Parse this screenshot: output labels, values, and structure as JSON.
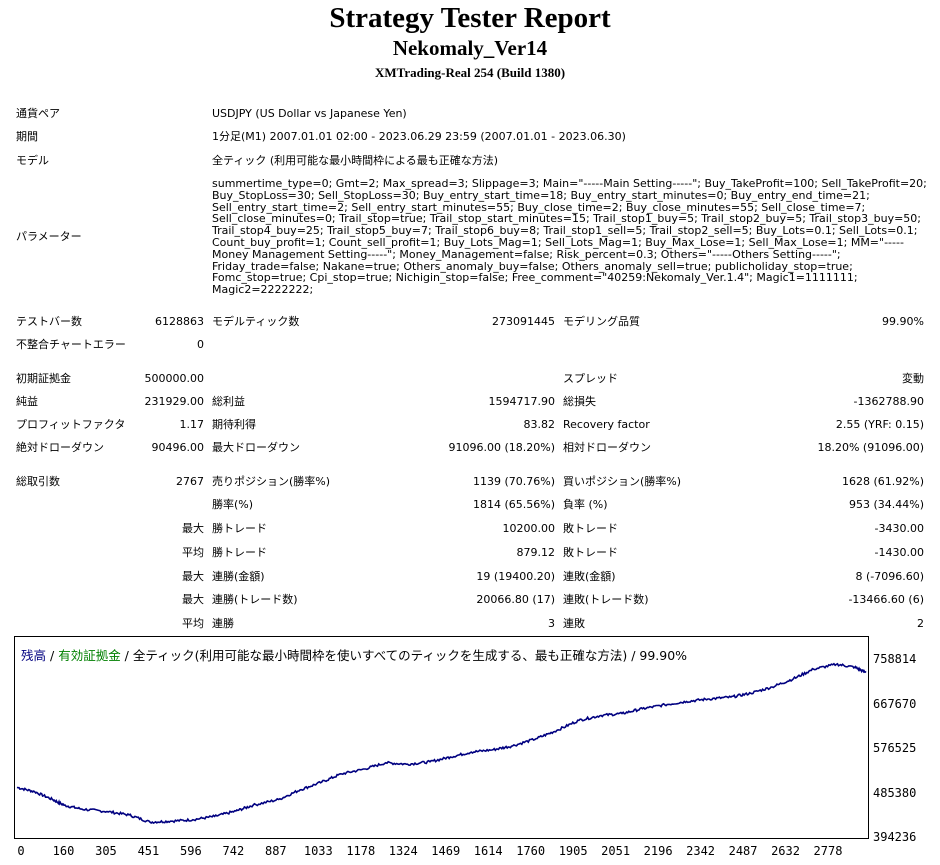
{
  "report": {
    "title": "Strategy Tester Report",
    "subtitle": "Nekomaly_Ver14",
    "build": "XMTrading-Real 254 (Build 1380)"
  },
  "info": {
    "pair_label": "通貨ペア",
    "pair_value": "USDJPY (US Dollar vs Japanese Yen)",
    "period_label": "期間",
    "period_value": "1分足(M1) 2007.01.01 02:00 - 2023.06.29 23:59 (2007.01.01 - 2023.06.30)",
    "model_label": "モデル",
    "model_value": "全ティック (利用可能な最小時間枠による最も正確な方法)",
    "params_label": "パラメーター",
    "params_value": "summertime_type=0; Gmt=2; Max_spread=3; Slippage=3; Main=\"-----Main Setting-----\"; Buy_TakeProfit=100; Sell_TakeProfit=20; Buy_StopLoss=30; Sell_StopLoss=30; Buy_entry_start_time=18; Buy_entry_start_minutes=0; Buy_entry_end_time=21; Sell_entry_start_time=2; Sell_entry_start_minutes=55; Buy_close_time=2; Buy_close_minutes=55; Sell_close_time=7; Sell_close_minutes=0; Trail_stop=true; Trail_stop_start_minutes=15; Trail_stop1_buy=5; Trail_stop2_buy=5; Trail_stop3_buy=50; Trail_stop4_buy=25; Trail_stop5_buy=7; Trail_stop6_buy=8; Trail_stop1_sell=5; Trail_stop2_sell=5; Buy_Lots=0.1; Sell_Lots=0.1; Count_buy_profit=1; Count_sell_profit=1; Buy_Lots_Mag=1; Sell_Lots_Mag=1; Buy_Max_Lose=1; Sell_Max_Lose=1; MM=\"-----Money Management Setting-----\"; Money_Management=false; Risk_percent=0.3; Others=\"-----Others Setting-----\"; Friday_trade=false; Nakane=true; Others_anomaly_buy=false; Others_anomaly_sell=true; publicholiday_stop=true; Fomc_stop=true; Cpi_stop=true; Nichigin_stop=false; Free_comment=\"40259:Nekomaly_Ver.1.4\"; Magic1=1111111; Magic2=2222222;"
  },
  "stats": {
    "bars_label": "テストバー数",
    "bars_value": "6128863",
    "ticks_label": "モデルティック数",
    "ticks_value": "273091445",
    "quality_label": "モデリング品質",
    "quality_value": "99.90%",
    "mismatch_label": "不整合チャートエラー",
    "mismatch_value": "0",
    "deposit_label": "初期証拠金",
    "deposit_value": "500000.00",
    "spread_label": "スプレッド",
    "spread_value": "変動",
    "net_label": "純益",
    "net_value": "231929.00",
    "gross_profit_label": "総利益",
    "gross_profit_value": "1594717.90",
    "gross_loss_label": "総損失",
    "gross_loss_value": "-1362788.90",
    "pf_label": "プロフィットファクタ",
    "pf_value": "1.17",
    "expected_label": "期待利得",
    "expected_value": "83.82",
    "recovery_label": "Recovery factor",
    "recovery_value": "2.55 (YRF: 0.15)",
    "abs_dd_label": "絶対ドローダウン",
    "abs_dd_value": "90496.00",
    "max_dd_label": "最大ドローダウン",
    "max_dd_value": "91096.00 (18.20%)",
    "rel_dd_label": "相対ドローダウン",
    "rel_dd_value": "18.20% (91096.00)",
    "trades_label": "総取引数",
    "trades_value": "2767",
    "short_label": "売りポジション(勝率%)",
    "short_value": "1139 (70.76%)",
    "long_label": "買いポジション(勝率%)",
    "long_value": "1628 (61.92%)",
    "winrate_label": "勝率(%)",
    "winrate_value": "1814 (65.56%)",
    "lossrate_label": "負率 (%)",
    "lossrate_value": "953 (34.44%)",
    "max_label": "最大",
    "avg_label": "平均",
    "win_trade_label": "勝トレード",
    "max_win_value": "10200.00",
    "avg_win_value": "879.12",
    "loss_trade_label": "敗トレード",
    "max_loss_value": "-3430.00",
    "avg_loss_value": "-1430.00",
    "consec_win_amount_label": "連勝(金額)",
    "consec_win_amount_value": "19 (19400.20)",
    "consec_loss_amount_label": "連敗(金額)",
    "consec_loss_amount_value": "8 (-7096.60)",
    "consec_win_count_label": "連勝(トレード数)",
    "consec_win_count_value": "20066.80 (17)",
    "consec_loss_count_label": "連敗(トレード数)",
    "consec_loss_count_value": "-13466.60 (6)",
    "avg_consec_win_label": "連勝",
    "avg_consec_win_value": "3",
    "avg_consec_loss_label": "連敗",
    "avg_consec_loss_value": "2"
  },
  "chart_data": {
    "type": "line",
    "legend_balance": "残高",
    "legend_sep": " / ",
    "legend_equity": "有効証拠金",
    "legend_rest": " / 全ティック(利用可能な最小時間枠を使いすべてのティックを生成する、最も正確な方法) / 99.90%",
    "colors": {
      "balance": "#000080",
      "equity": "#008000"
    },
    "x_ticks": [
      "0",
      "160",
      "305",
      "451",
      "596",
      "742",
      "887",
      "1033",
      "1178",
      "1324",
      "1469",
      "1614",
      "1760",
      "1905",
      "2051",
      "2196",
      "2342",
      "2487",
      "2632",
      "2778"
    ],
    "y_ticks": [
      "758814",
      "667670",
      "576525",
      "485380",
      "394236"
    ],
    "xlim": [
      0,
      2878
    ],
    "ylim": [
      394236,
      758814
    ],
    "series": [
      {
        "name": "残高",
        "x": [
          0,
          60,
          120,
          160,
          220,
          305,
          380,
          451,
          520,
          596,
          670,
          742,
          800,
          887,
          960,
          1033,
          1100,
          1178,
          1250,
          1324,
          1400,
          1469,
          1540,
          1614,
          1680,
          1760,
          1830,
          1905,
          1980,
          2051,
          2120,
          2196,
          2270,
          2342,
          2420,
          2487,
          2560,
          2632,
          2700,
          2778,
          2840,
          2878
        ],
        "y": [
          497000,
          488000,
          472000,
          460000,
          452000,
          447000,
          440000,
          425000,
          427000,
          430000,
          437000,
          448000,
          460000,
          472000,
          492000,
          508000,
          525000,
          535000,
          548000,
          545000,
          550000,
          560000,
          570000,
          575000,
          583000,
          598000,
          615000,
          636000,
          646000,
          650000,
          660000,
          668000,
          675000,
          680000,
          684000,
          692000,
          705000,
          722000,
          742000,
          752000,
          746000,
          735000
        ]
      }
    ]
  }
}
